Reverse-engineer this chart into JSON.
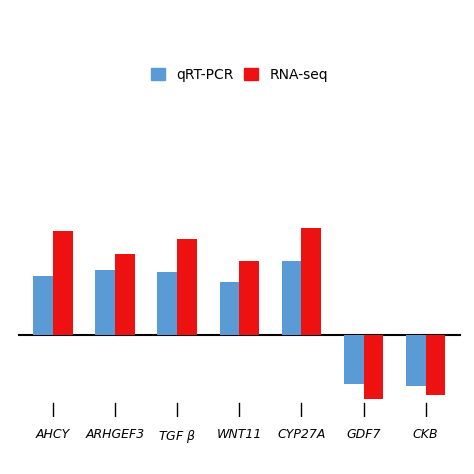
{
  "categories": [
    "AHCY",
    "ARHGEF3",
    "TGF β",
    "WNT11",
    "CYP27A",
    "GDF7",
    "CKB"
  ],
  "qrt_pcr": [
    1.6,
    1.75,
    1.7,
    1.45,
    2.0,
    -1.3,
    -1.35
  ],
  "rna_seq": [
    2.8,
    2.2,
    2.6,
    2.0,
    2.9,
    -1.7,
    -1.6
  ],
  "qrt_color": "#5b9bd5",
  "rna_color": "#ee1111",
  "legend_labels": [
    "qRT-PCR",
    "RNA-seq"
  ],
  "background_color": "#ffffff",
  "bar_width": 0.32,
  "ylim": [
    -2.2,
    7.5
  ],
  "label_fontsize": 9,
  "legend_fontsize": 10
}
